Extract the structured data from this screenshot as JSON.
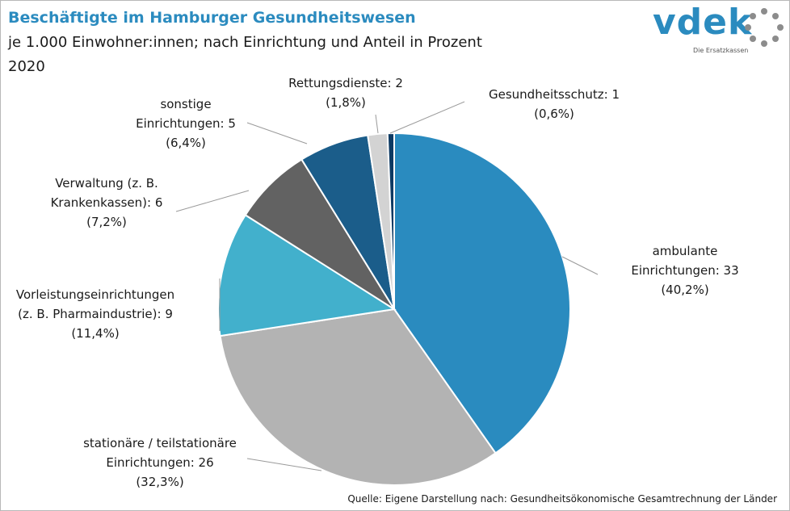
{
  "header": {
    "title": "Beschäftigte im Hamburger Gesundheitswesen",
    "subtitle": "je 1.000 Einwohner:innen; nach Einrichtung und Anteil in Prozent",
    "year": "2020"
  },
  "logo": {
    "word": "vdek",
    "tagline": "Die Ersatzkassen"
  },
  "source": "Quelle: Eigene Darstellung nach: Gesundheitsökonomische Gesamtrechnung der Länder",
  "chart_data": {
    "type": "pie",
    "title": "Beschäftigte im Hamburger Gesundheitswesen",
    "unit": "je 1.000 Einwohner:innen",
    "slices": [
      {
        "name": "ambulante Einrichtungen",
        "value": 33,
        "percent": 40.2,
        "color": "#2a8bbf",
        "label_lines": [
          "ambulante",
          "Einrichtungen: 33",
          "(40,2%)"
        ]
      },
      {
        "name": "stationäre / teilstationäre Einrichtungen",
        "value": 26,
        "percent": 32.3,
        "color": "#b3b3b3",
        "label_lines": [
          "stationäre / teilstationäre",
          "Einrichtungen: 26",
          "(32,3%)"
        ]
      },
      {
        "name": "Vorleistungseinrichtungen (z. B. Pharmaindustrie)",
        "value": 9,
        "percent": 11.4,
        "color": "#42b0cc",
        "label_lines": [
          "Vorleistungseinrichtungen",
          "(z. B. Pharmaindustrie): 9",
          "(11,4%)"
        ]
      },
      {
        "name": "Verwaltung (z. B. Krankenkassen)",
        "value": 6,
        "percent": 7.2,
        "color": "#626262",
        "label_lines": [
          "Verwaltung (z. B.",
          "Krankenkassen): 6",
          "(7,2%)"
        ]
      },
      {
        "name": "sonstige Einrichtungen",
        "value": 5,
        "percent": 6.4,
        "color": "#1b5d8a",
        "label_lines": [
          "sonstige",
          "Einrichtungen: 5",
          "(6,4%)"
        ]
      },
      {
        "name": "Rettungsdienste",
        "value": 2,
        "percent": 1.8,
        "color": "#d3d3d3",
        "label_lines": [
          "Rettungsdienste: 2",
          "(1,8%)"
        ]
      },
      {
        "name": "Gesundheitsschutz",
        "value": 1,
        "percent": 0.6,
        "color": "#0d3a63",
        "label_lines": [
          "Gesundheitsschutz: 1",
          "(0,6%)"
        ]
      }
    ]
  }
}
